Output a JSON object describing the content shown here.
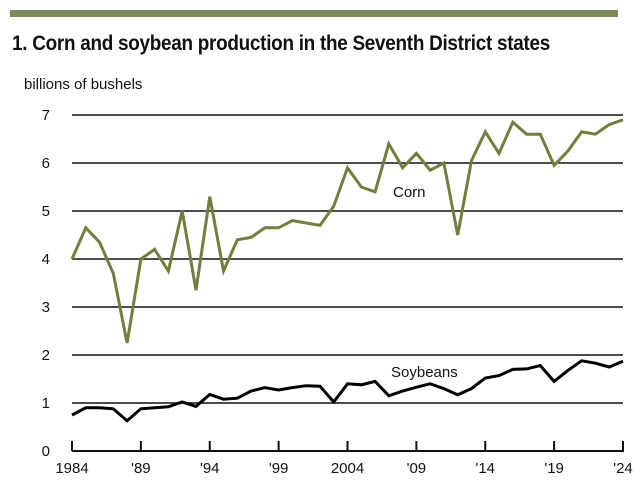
{
  "chart_data": {
    "type": "line",
    "title": "1.  Corn and soybean production in the Seventh District states",
    "ylabel": "billions of bushels",
    "xlabel": "",
    "ylim": [
      0,
      7
    ],
    "xlim": [
      1984,
      2024
    ],
    "grid": true,
    "yticks": [
      "0",
      "1",
      "2",
      "3",
      "4",
      "5",
      "6",
      "7"
    ],
    "xticks": [
      {
        "value": 1984,
        "label": "1984"
      },
      {
        "value": 1989,
        "label": "'89"
      },
      {
        "value": 1994,
        "label": "'94"
      },
      {
        "value": 1999,
        "label": "'99"
      },
      {
        "value": 2004,
        "label": "2004"
      },
      {
        "value": 2009,
        "label": "'09"
      },
      {
        "value": 2014,
        "label": "'14"
      },
      {
        "value": 2019,
        "label": "'19"
      },
      {
        "value": 2024,
        "label": "'24"
      }
    ],
    "x": [
      1984,
      1985,
      1986,
      1987,
      1988,
      1989,
      1990,
      1991,
      1992,
      1993,
      1994,
      1995,
      1996,
      1997,
      1998,
      1999,
      2000,
      2001,
      2002,
      2003,
      2004,
      2005,
      2006,
      2007,
      2008,
      2009,
      2010,
      2011,
      2012,
      2013,
      2014,
      2015,
      2016,
      2017,
      2018,
      2019,
      2020,
      2021,
      2022,
      2023,
      2024
    ],
    "series": [
      {
        "name": "Corn",
        "color": "#6f7f3c",
        "values": [
          4.0,
          4.65,
          4.35,
          3.7,
          2.25,
          4.0,
          4.2,
          3.75,
          5.0,
          3.35,
          5.3,
          3.75,
          4.4,
          4.45,
          4.65,
          4.65,
          4.8,
          4.75,
          4.7,
          5.1,
          5.9,
          5.5,
          5.4,
          6.4,
          5.9,
          6.2,
          5.85,
          6.0,
          4.5,
          6.05,
          6.65,
          6.2,
          6.85,
          6.6,
          6.6,
          5.95,
          6.25,
          6.65,
          6.6,
          6.8,
          6.9
        ]
      },
      {
        "name": "Soybeans",
        "color": "#000000",
        "values": [
          0.75,
          0.9,
          0.9,
          0.88,
          0.63,
          0.88,
          0.9,
          0.92,
          1.02,
          0.93,
          1.18,
          1.08,
          1.1,
          1.25,
          1.32,
          1.27,
          1.32,
          1.36,
          1.35,
          1.02,
          1.4,
          1.38,
          1.45,
          1.15,
          1.25,
          1.33,
          1.4,
          1.3,
          1.17,
          1.3,
          1.52,
          1.57,
          1.7,
          1.71,
          1.78,
          1.45,
          1.68,
          1.88,
          1.83,
          1.75,
          1.87
        ]
      }
    ]
  },
  "colors": {
    "accent_bar": "#7d8b5c"
  }
}
